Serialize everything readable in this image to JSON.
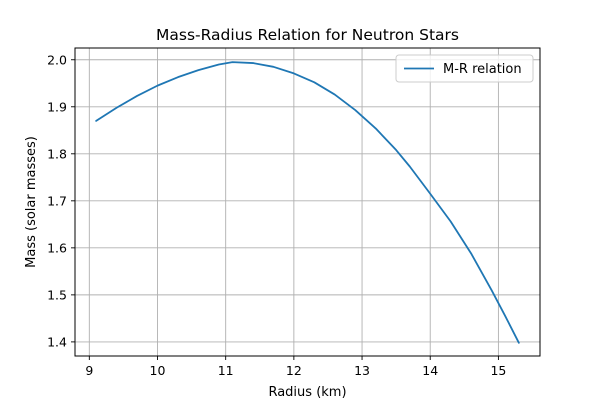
{
  "chart_data": {
    "type": "line",
    "title": "Mass-Radius Relation for Neutron Stars",
    "xlabel": "Radius (km)",
    "ylabel": "Mass (solar masses)",
    "xlim": [
      8.79,
      15.61
    ],
    "ylim": [
      1.37,
      2.025
    ],
    "xticks": [
      9,
      10,
      11,
      12,
      13,
      14,
      15
    ],
    "yticks": [
      1.4,
      1.5,
      1.6,
      1.7,
      1.8,
      1.9,
      2.0
    ],
    "xtick_labels": [
      "9",
      "10",
      "11",
      "12",
      "13",
      "14",
      "15"
    ],
    "ytick_labels": [
      "1.4",
      "1.5",
      "1.6",
      "1.7",
      "1.8",
      "1.9",
      "2.0"
    ],
    "grid": true,
    "legend_position": "top-right",
    "color": "#1f77b4",
    "series": [
      {
        "name": "M-R relation",
        "x": [
          9.1,
          9.4,
          9.7,
          10.0,
          10.3,
          10.6,
          10.9,
          11.1,
          11.4,
          11.7,
          12.0,
          12.3,
          12.6,
          12.9,
          13.2,
          13.5,
          13.7,
          14.0,
          14.3,
          14.6,
          14.9,
          15.1,
          15.3
        ],
        "y": [
          1.87,
          1.898,
          1.923,
          1.945,
          1.963,
          1.978,
          1.99,
          1.995,
          1.993,
          1.985,
          1.971,
          1.952,
          1.926,
          1.893,
          1.854,
          1.808,
          1.773,
          1.715,
          1.656,
          1.588,
          1.51,
          1.455,
          1.398
        ]
      }
    ]
  }
}
